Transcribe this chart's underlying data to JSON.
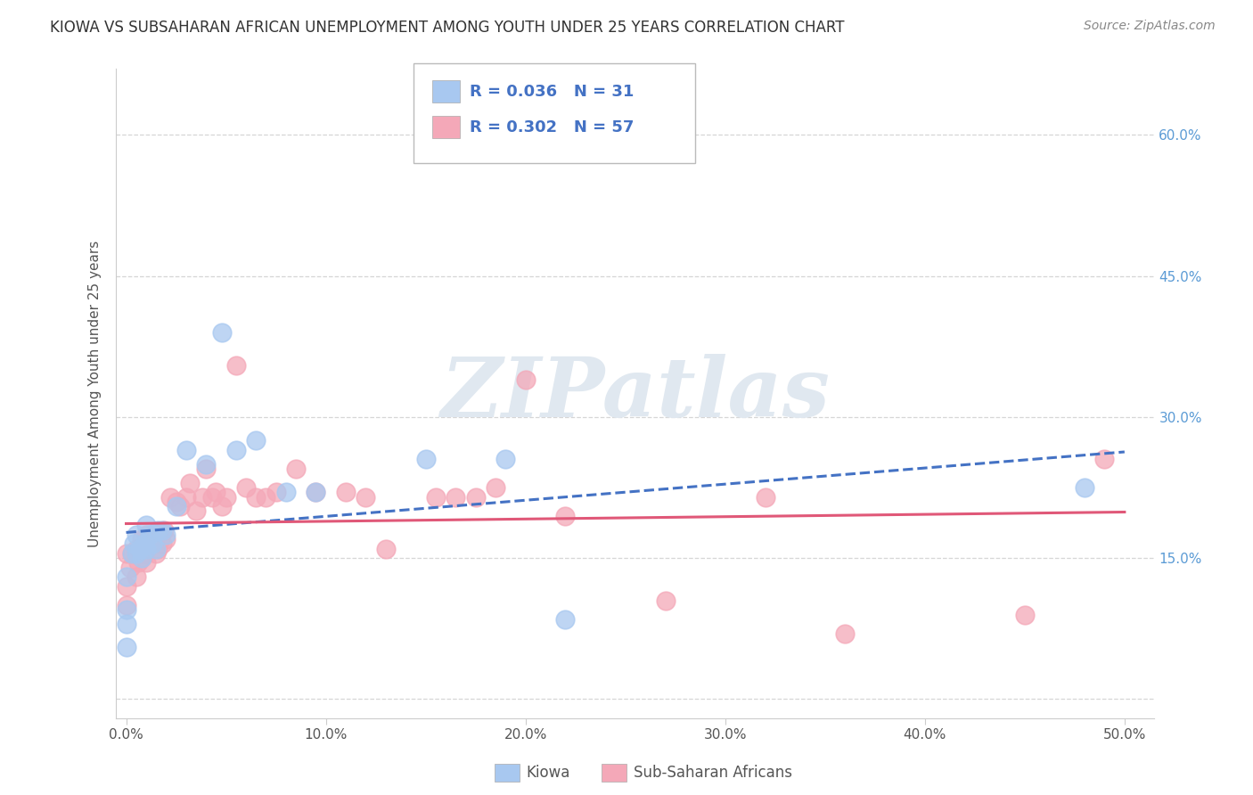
{
  "title": "KIOWA VS SUBSAHARAN AFRICAN UNEMPLOYMENT AMONG YOUTH UNDER 25 YEARS CORRELATION CHART",
  "source": "Source: ZipAtlas.com",
  "ylabel": "Unemployment Among Youth under 25 years",
  "xlim_min": -0.005,
  "xlim_max": 0.515,
  "ylim_min": -0.02,
  "ylim_max": 0.67,
  "xtick_vals": [
    0.0,
    0.1,
    0.2,
    0.3,
    0.4,
    0.5
  ],
  "ytick_vals": [
    0.0,
    0.15,
    0.3,
    0.45,
    0.6
  ],
  "grid_color": "#cccccc",
  "background_color": "#ffffff",
  "watermark_text": "ZIPatlas",
  "watermark_color": "#e0e8f0",
  "kiowa_R": 0.036,
  "kiowa_N": 31,
  "ssa_R": 0.302,
  "ssa_N": 57,
  "kiowa_dot_color": "#a8c8f0",
  "ssa_dot_color": "#f4a8b8",
  "kiowa_line_color": "#4472c4",
  "ssa_line_color": "#e05878",
  "ytick_color": "#5b9bd5",
  "xtick_color": "#555555",
  "ylabel_color": "#555555",
  "legend_text_color": "#4472c4",
  "bottom_legend_text_color": "#555555",
  "kiowa_x": [
    0.0,
    0.0,
    0.0,
    0.0,
    0.003,
    0.004,
    0.005,
    0.005,
    0.007,
    0.008,
    0.009,
    0.01,
    0.01,
    0.012,
    0.013,
    0.015,
    0.016,
    0.018,
    0.02,
    0.025,
    0.03,
    0.04,
    0.048,
    0.055,
    0.065,
    0.08,
    0.095,
    0.15,
    0.19,
    0.22,
    0.48
  ],
  "kiowa_y": [
    0.055,
    0.08,
    0.095,
    0.13,
    0.155,
    0.165,
    0.155,
    0.175,
    0.16,
    0.15,
    0.165,
    0.16,
    0.185,
    0.175,
    0.165,
    0.16,
    0.18,
    0.18,
    0.175,
    0.205,
    0.265,
    0.25,
    0.39,
    0.265,
    0.275,
    0.22,
    0.22,
    0.255,
    0.255,
    0.085,
    0.225
  ],
  "ssa_x": [
    0.0,
    0.0,
    0.0,
    0.002,
    0.003,
    0.005,
    0.005,
    0.006,
    0.007,
    0.008,
    0.008,
    0.009,
    0.01,
    0.01,
    0.01,
    0.012,
    0.013,
    0.015,
    0.015,
    0.016,
    0.017,
    0.018,
    0.019,
    0.02,
    0.022,
    0.025,
    0.027,
    0.03,
    0.032,
    0.035,
    0.038,
    0.04,
    0.043,
    0.045,
    0.048,
    0.05,
    0.055,
    0.06,
    0.065,
    0.07,
    0.075,
    0.085,
    0.095,
    0.11,
    0.12,
    0.13,
    0.155,
    0.165,
    0.175,
    0.185,
    0.2,
    0.22,
    0.27,
    0.32,
    0.36,
    0.45,
    0.49
  ],
  "ssa_y": [
    0.1,
    0.12,
    0.155,
    0.14,
    0.155,
    0.13,
    0.16,
    0.145,
    0.155,
    0.15,
    0.17,
    0.155,
    0.145,
    0.16,
    0.175,
    0.165,
    0.175,
    0.155,
    0.175,
    0.16,
    0.17,
    0.165,
    0.18,
    0.17,
    0.215,
    0.21,
    0.205,
    0.215,
    0.23,
    0.2,
    0.215,
    0.245,
    0.215,
    0.22,
    0.205,
    0.215,
    0.355,
    0.225,
    0.215,
    0.215,
    0.22,
    0.245,
    0.22,
    0.22,
    0.215,
    0.16,
    0.215,
    0.215,
    0.215,
    0.225,
    0.34,
    0.195,
    0.105,
    0.215,
    0.07,
    0.09,
    0.255
  ]
}
